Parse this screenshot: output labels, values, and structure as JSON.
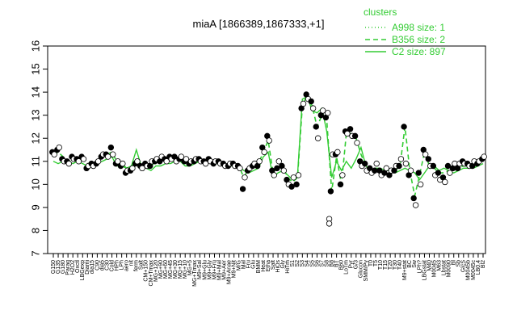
{
  "chart_data": {
    "type": "line",
    "title": "miaA [1866389,1867333,+1]",
    "xlabel": "",
    "ylabel": "",
    "ylim": [
      7,
      16
    ],
    "yticks": [
      7,
      8,
      9,
      10,
      11,
      12,
      13,
      14,
      15,
      16
    ],
    "grid": false,
    "legend": {
      "title": "clusters",
      "placement": "top-right",
      "color": "#33cc33",
      "entries": [
        {
          "label": "A998 size: 1",
          "style": "dotted"
        },
        {
          "label": "B356 size: 2",
          "style": "dashed"
        },
        {
          "label": "C2 size: 897",
          "style": "solid"
        }
      ]
    },
    "line_color": "#33cc33",
    "x_tick_labels": [
      "G150",
      "G135",
      "G180",
      "Paraq",
      "H2O2",
      "Oxctl",
      "LBGexp",
      "Diami",
      "dia15",
      "C90",
      "dia5",
      "C30",
      "Cold",
      "HPh",
      "LPh",
      "aero",
      "nit",
      "ferm",
      "Salt",
      "CM+150",
      "CM+Tmax",
      "MG+120",
      "MG+90",
      "MG+60",
      "MG+45",
      "MG+30",
      "MG+15",
      "MG+10",
      "MG+5",
      "MG+Tmax",
      "M9+Sal",
      "M9+Glu",
      "M9+Gly",
      "M9+Fru",
      "M9+Mal",
      "M9+Aer",
      "M9+Anae",
      "M9+Nit",
      "M/G",
      "Mal",
      "Fru",
      "Glu",
      "BMM",
      "Heat",
      "Etha",
      "Salt",
      "HiOs",
      "Gly",
      "HiTm",
      "S1",
      "S2",
      "S3",
      "S4",
      "S5",
      "S6",
      "S7",
      "S8",
      "B8",
      "BT",
      "B60",
      "LoTm",
      "Pyr",
      "G/3",
      "Glucon",
      "SMM/Py",
      "T0",
      "T5",
      "T10",
      "T15",
      "T20",
      "T30",
      "T40",
      "M9+stat",
      "BC",
      "Sw",
      "LPh?",
      "LBGstat",
      "M40",
      "M0045",
      "M63",
      "Lbstat",
      "M0090",
      "Bl",
      "Sb",
      "GlcS",
      "M0045b",
      "M0045c",
      "LB0.4",
      "Bl2"
    ],
    "series": [
      {
        "name": "C2 size: 897",
        "style": "solid",
        "values": [
          11.0,
          10.9,
          11.0,
          11.0,
          10.9,
          11.0,
          10.9,
          10.8,
          10.8,
          10.9,
          11.0,
          11.1,
          11.2,
          10.8,
          10.8,
          10.7,
          10.8,
          11.5,
          10.8,
          10.7,
          10.6,
          10.8,
          10.8,
          10.9,
          10.9,
          11.0,
          11.0,
          10.8,
          10.8,
          10.9,
          11.0,
          10.9,
          11.0,
          10.9,
          10.9,
          10.8,
          10.8,
          10.8,
          10.8,
          10.6,
          10.5,
          10.6,
          10.7,
          11.2,
          11.4,
          10.3,
          10.5,
          10.6,
          10.4,
          10.2,
          10.4,
          13.7,
          13.8,
          13.2,
          13.1,
          13.3,
          12.3,
          10.3,
          11.0,
          10.6,
          11.0,
          10.7,
          11.1,
          11.6,
          10.8,
          10.6,
          10.7,
          10.7,
          10.6,
          10.6,
          10.5,
          10.6,
          10.7,
          10.6,
          10.5,
          10.2,
          10.5,
          10.8,
          10.8,
          10.6,
          10.7,
          10.6,
          10.5,
          10.6,
          10.7,
          10.7,
          10.7,
          10.8,
          10.9
        ]
      },
      {
        "name": "B356 size: 2",
        "style": "dashed",
        "values": [
          11.3,
          11.4,
          11.2,
          11.0,
          11.1,
          11.1,
          11.1,
          10.9,
          10.9,
          10.9,
          11.2,
          11.3,
          11.4,
          11.0,
          10.9,
          10.7,
          10.8,
          11.0,
          10.8,
          10.9,
          10.8,
          11.0,
          11.0,
          11.0,
          11.1,
          11.1,
          11.1,
          11.0,
          11.0,
          11.0,
          11.0,
          11.0,
          11.0,
          11.0,
          11.0,
          10.9,
          10.9,
          10.9,
          10.8,
          10.3,
          10.7,
          10.8,
          10.9,
          11.4,
          11.9,
          10.5,
          10.8,
          10.8,
          10.3,
          10.1,
          10.3,
          13.4,
          13.9,
          13.4,
          12.5,
          13.0,
          12.8,
          9.7,
          11.2,
          10.0,
          12.2,
          12.2,
          12.0,
          11.3,
          10.8,
          10.6,
          10.7,
          10.6,
          10.5,
          10.5,
          10.6,
          10.8,
          12.5,
          10.6,
          9.5,
          10.4,
          11.4,
          10.8,
          10.7,
          10.5,
          10.5,
          10.6,
          10.6,
          10.7,
          10.8,
          10.8,
          10.8,
          10.9,
          11.0
        ]
      }
    ],
    "points": [
      [
        11.4,
        11.3
      ],
      [
        11.5,
        11.6
      ],
      [
        11.1,
        11.0
      ],
      [
        11.0,
        10.9
      ],
      [
        11.2,
        11.1
      ],
      [
        11.1,
        11.0
      ],
      [
        11.2,
        11.1
      ],
      [
        10.7,
        10.8
      ],
      [
        10.9,
        10.8
      ],
      [
        10.9,
        11.0
      ],
      [
        11.2,
        11.3
      ],
      [
        11.3,
        11.2
      ],
      [
        11.6,
        11.3
      ],
      [
        10.9,
        11.0
      ],
      [
        10.8,
        10.9
      ],
      [
        10.5,
        10.6
      ],
      [
        10.6,
        10.7
      ],
      [
        10.9,
        11.0
      ],
      [
        10.8,
        10.7
      ],
      [
        10.9,
        10.8
      ],
      [
        10.8,
        11.0
      ],
      [
        11.0,
        11.1
      ],
      [
        11.0,
        11.2
      ],
      [
        11.1,
        11.0
      ],
      [
        11.2,
        11.1
      ],
      [
        11.2,
        11.0
      ],
      [
        11.1,
        11.2
      ],
      [
        11.0,
        11.1
      ],
      [
        10.9,
        11.0
      ],
      [
        11.0,
        11.1
      ],
      [
        11.1,
        11.0
      ],
      [
        11.0,
        10.9
      ],
      [
        11.1,
        11.0
      ],
      [
        10.9,
        11.0
      ],
      [
        11.0,
        10.9
      ],
      [
        10.9,
        10.8
      ],
      [
        10.8,
        10.9
      ],
      [
        10.9,
        10.8
      ],
      [
        10.8,
        10.7
      ],
      [
        9.8,
        10.3
      ],
      [
        10.6,
        10.7
      ],
      [
        10.8,
        10.9
      ],
      [
        10.8,
        11.0
      ],
      [
        11.6,
        11.4
      ],
      [
        12.1,
        11.9
      ],
      [
        10.6,
        10.4
      ],
      [
        10.7,
        11.0
      ],
      [
        10.8,
        10.6
      ],
      [
        10.2,
        10.0
      ],
      [
        9.9,
        10.3
      ],
      [
        10.0,
        10.4
      ],
      [
        13.3,
        13.5
      ],
      [
        13.9,
        13.7
      ],
      [
        13.6,
        13.3
      ],
      [
        12.5,
        12.0
      ],
      [
        13.0,
        13.2
      ],
      [
        12.9,
        13.1
      ],
      [
        9.7,
        11.3
      ],
      [
        11.3,
        11.4
      ],
      [
        10.0,
        10.4
      ],
      [
        12.3,
        12.2
      ],
      [
        12.4,
        12.1
      ],
      [
        12.1,
        11.8
      ],
      [
        11.0,
        10.8
      ],
      [
        10.9,
        10.6
      ],
      [
        10.7,
        10.5
      ],
      [
        10.6,
        10.9
      ],
      [
        10.6,
        10.4
      ],
      [
        10.5,
        10.7
      ],
      [
        10.4,
        10.6
      ],
      [
        10.6,
        10.8
      ],
      [
        10.8,
        11.1
      ],
      [
        12.5,
        10.9
      ],
      [
        10.4,
        10.6
      ],
      [
        9.4,
        9.1
      ],
      [
        10.5,
        10.0
      ],
      [
        11.5,
        11.3
      ],
      [
        11.1,
        10.8
      ],
      [
        10.8,
        10.4
      ],
      [
        10.5,
        10.2
      ],
      [
        10.3,
        10.1
      ],
      [
        10.8,
        10.5
      ],
      [
        10.7,
        10.9
      ],
      [
        10.7,
        10.9
      ],
      [
        11.0,
        10.9
      ],
      [
        10.9,
        10.8
      ],
      [
        10.8,
        11.0
      ],
      [
        10.9,
        11.0
      ],
      [
        11.1,
        11.2
      ]
    ],
    "extra_points": [
      {
        "after_index": 56,
        "values": [
          8.5,
          8.3
        ]
      }
    ]
  }
}
